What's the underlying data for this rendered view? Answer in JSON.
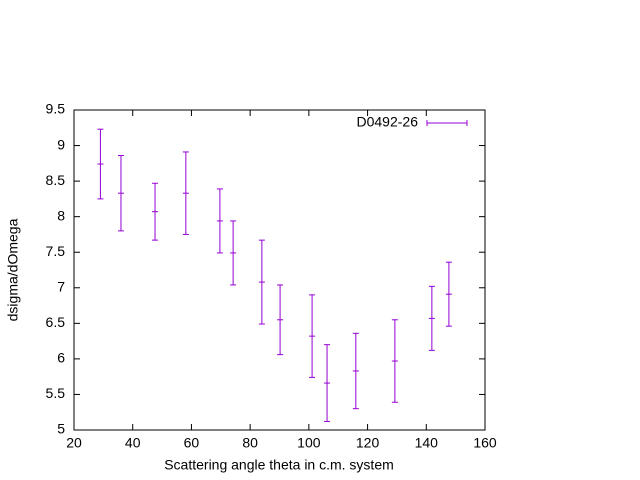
{
  "chart_data": {
    "type": "errorbar",
    "xlabel": "Scattering angle theta in c.m. system",
    "ylabel": "dsigma/dOmega",
    "series": [
      {
        "name": "D0492-26",
        "color": "#9400d3",
        "x": [
          29,
          36,
          47.6,
          58.1,
          69.7,
          74.2,
          84,
          90.2,
          101.1,
          106.2,
          116,
          129.3,
          141.9,
          147.7
        ],
        "values": [
          8.74,
          8.33,
          8.07,
          8.33,
          7.94,
          7.49,
          7.08,
          6.55,
          6.32,
          5.66,
          5.83,
          5.97,
          6.57,
          6.91
        ],
        "errors": [
          0.49,
          0.53,
          0.4,
          0.58,
          0.45,
          0.45,
          0.59,
          0.49,
          0.58,
          0.54,
          0.53,
          0.58,
          0.45,
          0.45
        ]
      }
    ],
    "xlim": [
      20,
      160
    ],
    "xticks": [
      20,
      40,
      60,
      80,
      100,
      120,
      140,
      160
    ],
    "ylim": [
      5,
      9.5
    ],
    "yticks": [
      5,
      5.5,
      6,
      6.5,
      7,
      7.5,
      8,
      8.5,
      9,
      9.5
    ],
    "legend": "top-right",
    "grid": false
  }
}
